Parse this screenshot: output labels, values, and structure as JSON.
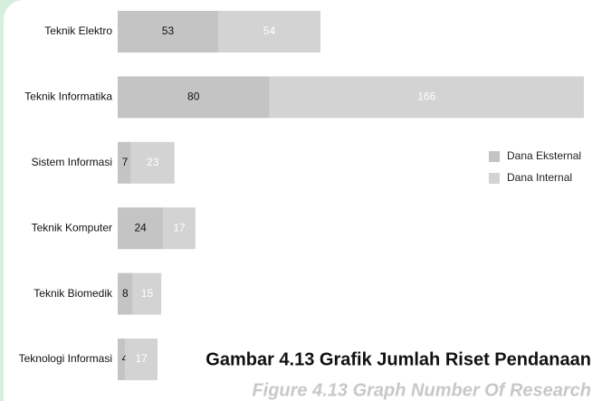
{
  "chart_data": {
    "type": "stacked-bar-horizontal",
    "title": "Gambar 4.13 Grafik Jumlah Riset Pendanaan",
    "subtitle": "Figure 4.13 Graph Number Of Research",
    "categories": [
      "Teknik Elektro",
      "Teknik Informatika",
      "Sistem Informasi",
      "Teknik Komputer",
      "Teknik Biomedik",
      "Teknologi Informasi"
    ],
    "series": [
      {
        "name": "Dana Eksternal",
        "color": "#c4c4c4",
        "values": [
          53,
          80,
          7,
          24,
          8,
          4
        ]
      },
      {
        "name": "Dana Internal",
        "color": "#d3d3d3",
        "values": [
          54,
          166,
          23,
          17,
          15,
          17
        ]
      }
    ],
    "legend": "right"
  }
}
